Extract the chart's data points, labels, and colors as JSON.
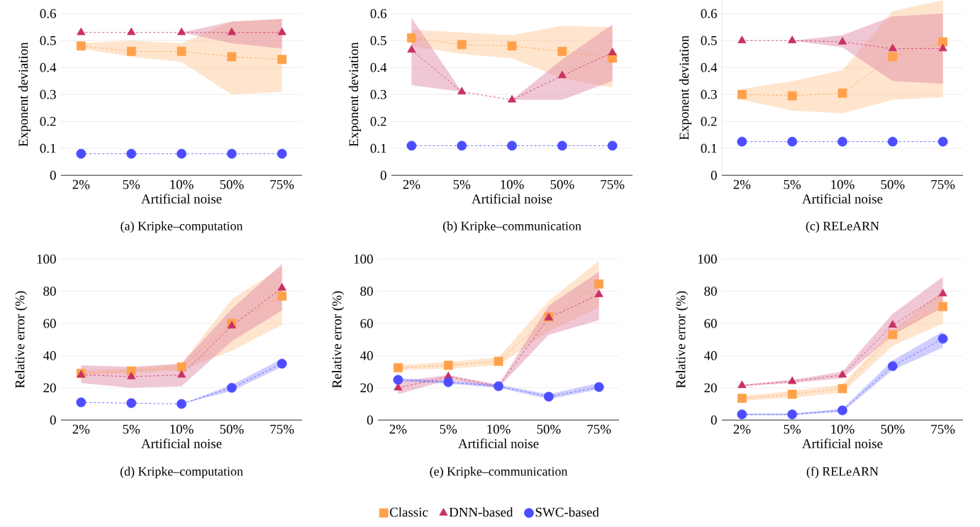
{
  "chart_data": [
    {
      "type": "line",
      "title": "(a) Kripke–computation",
      "xlabel": "Artificial noise",
      "ylabel": "Exponent deviation",
      "categories": [
        "2%",
        "5%",
        "10%",
        "50%",
        "75%"
      ],
      "ylim": [
        0,
        0.6
      ],
      "yticks": [
        0,
        0.1,
        0.2,
        0.3,
        0.4,
        0.5,
        0.6
      ],
      "grid": "y",
      "line_style": "dashed",
      "series": [
        {
          "color": "#ffa14a",
          "marker": "square",
          "values": [
            0.48,
            0.46,
            0.46,
            0.44,
            0.43
          ],
          "lower": [
            0.47,
            0.44,
            0.42,
            0.3,
            0.31
          ],
          "upper": [
            0.49,
            0.5,
            0.49,
            0.57,
            0.58
          ]
        },
        {
          "color": "#c93163",
          "marker": "triangle",
          "values": [
            0.53,
            0.53,
            0.53,
            0.53,
            0.53
          ],
          "lower": [
            0.53,
            0.53,
            0.53,
            0.49,
            0.47
          ],
          "upper": [
            0.53,
            0.53,
            0.53,
            0.57,
            0.58
          ]
        },
        {
          "color": "#4d4dff",
          "marker": "circle",
          "values": [
            0.08,
            0.08,
            0.08,
            0.08,
            0.08
          ]
        }
      ]
    },
    {
      "type": "line",
      "title": "(b) Kripke–communication",
      "xlabel": "Artificial noise",
      "ylabel": "Exponent deviation",
      "categories": [
        "2%",
        "5%",
        "10%",
        "50%",
        "75%"
      ],
      "ylim": [
        0,
        0.6
      ],
      "yticks": [
        0,
        0.1,
        0.2,
        0.3,
        0.4,
        0.5,
        0.6
      ],
      "grid": "y",
      "line_style": "dashed",
      "series": [
        {
          "color": "#ffa14a",
          "marker": "square",
          "values": [
            0.51,
            0.485,
            0.48,
            0.46,
            0.435
          ],
          "lower": [
            0.48,
            0.45,
            0.435,
            0.36,
            0.325
          ],
          "upper": [
            0.54,
            0.53,
            0.52,
            0.555,
            0.55
          ]
        },
        {
          "color": "#c93163",
          "marker": "triangle",
          "values": [
            0.465,
            0.31,
            0.28,
            0.37,
            0.455
          ],
          "lower": [
            0.335,
            0.31,
            0.28,
            0.28,
            0.35
          ],
          "upper": [
            0.585,
            0.31,
            0.28,
            0.43,
            0.56
          ]
        },
        {
          "color": "#4d4dff",
          "marker": "circle",
          "values": [
            0.11,
            0.11,
            0.11,
            0.11,
            0.11
          ]
        }
      ]
    },
    {
      "type": "line",
      "title": "(c) RELeARN",
      "xlabel": "Artificial noise",
      "ylabel": "Exponent deviation",
      "categories": [
        "2%",
        "5%",
        "10%",
        "50%",
        "75%"
      ],
      "ylim": [
        0,
        0.65
      ],
      "yticks": [
        0,
        0.1,
        0.2,
        0.3,
        0.4,
        0.5,
        0.6
      ],
      "grid": "y",
      "line_style": "dashed",
      "series": [
        {
          "color": "#ffa14a",
          "marker": "square",
          "values": [
            0.3,
            0.295,
            0.305,
            0.44,
            0.495
          ],
          "lower": [
            0.28,
            0.24,
            0.23,
            0.28,
            0.29
          ],
          "upper": [
            0.32,
            0.35,
            0.39,
            0.61,
            0.65
          ]
        },
        {
          "color": "#c93163",
          "marker": "triangle",
          "values": [
            0.5,
            0.5,
            0.495,
            0.47,
            0.47
          ],
          "lower": [
            0.5,
            0.5,
            0.475,
            0.35,
            0.34
          ],
          "upper": [
            0.5,
            0.5,
            0.52,
            0.59,
            0.6
          ]
        },
        {
          "color": "#4d4dff",
          "marker": "circle",
          "values": [
            0.125,
            0.125,
            0.125,
            0.125,
            0.125
          ]
        }
      ]
    },
    {
      "type": "line",
      "title": "(d) Kripke–computation",
      "xlabel": "Artificial noise",
      "ylabel": "Relative error (%)",
      "categories": [
        "2%",
        "5%",
        "10%",
        "50%",
        "75%"
      ],
      "ylim": [
        0,
        100
      ],
      "yticks": [
        0,
        20,
        40,
        60,
        80,
        100
      ],
      "grid": "y",
      "line_style": "dashed",
      "series": [
        {
          "color": "#ffa14a",
          "marker": "square",
          "values": [
            29,
            30.5,
            33,
            60,
            77
          ],
          "lower": [
            28,
            29,
            31,
            43,
            59
          ],
          "upper": [
            31,
            32,
            35,
            75,
            95
          ]
        },
        {
          "color": "#c93163",
          "marker": "triangle",
          "values": [
            28,
            27,
            28,
            58.5,
            82
          ],
          "lower": [
            23,
            20,
            21,
            49,
            68
          ],
          "upper": [
            34,
            33,
            35,
            69,
            97
          ]
        },
        {
          "color": "#4d4dff",
          "marker": "circle",
          "values": [
            11,
            10.5,
            10,
            20,
            35
          ],
          "lower": [
            11,
            10.5,
            10,
            18,
            33
          ],
          "upper": [
            11,
            10.5,
            10,
            22,
            38
          ]
        }
      ]
    },
    {
      "type": "line",
      "title": "(e) Kripke–communication",
      "xlabel": "Artificial noise",
      "ylabel": "Relative error (%)",
      "categories": [
        "2%",
        "5%",
        "10%",
        "50%",
        "75%"
      ],
      "ylim": [
        0,
        100
      ],
      "yticks": [
        0,
        20,
        40,
        60,
        80,
        100
      ],
      "grid": "y",
      "line_style": "dashed",
      "legend": "bottom",
      "series": [
        {
          "name": "Classic",
          "color": "#ffa14a",
          "marker": "square",
          "values": [
            32.5,
            34,
            36.5,
            64,
            84.5
          ],
          "lower": [
            31,
            32,
            34,
            55,
            70
          ],
          "upper": [
            34,
            36,
            39,
            74,
            99
          ]
        },
        {
          "name": "DNN-based",
          "color": "#c93163",
          "marker": "triangle",
          "values": [
            20,
            27,
            21,
            63.5,
            78
          ],
          "lower": [
            16,
            25,
            20,
            53,
            62
          ],
          "upper": [
            24,
            28,
            22,
            71,
            92
          ]
        },
        {
          "name": "SWC-based",
          "color": "#4d4dff",
          "marker": "circle",
          "values": [
            25,
            23.5,
            21,
            14.5,
            20.5
          ],
          "lower": [
            24,
            22.5,
            20,
            13,
            19
          ],
          "upper": [
            26,
            24.5,
            22,
            16,
            23
          ]
        }
      ]
    },
    {
      "type": "line",
      "title": "(f) RELeARN",
      "xlabel": "Artificial noise",
      "ylabel": "Relative error (%)",
      "categories": [
        "2%",
        "5%",
        "10%",
        "50%",
        "75%"
      ],
      "ylim": [
        0,
        100
      ],
      "yticks": [
        0,
        20,
        40,
        60,
        80,
        100
      ],
      "grid": "y",
      "line_style": "dashed",
      "series": [
        {
          "color": "#ffa14a",
          "marker": "square",
          "values": [
            13.5,
            16,
            19.5,
            53,
            70.5
          ],
          "lower": [
            12,
            14,
            17,
            46,
            60
          ],
          "upper": [
            15,
            18,
            22,
            56,
            80
          ]
        },
        {
          "color": "#c93163",
          "marker": "triangle",
          "values": [
            21.5,
            24,
            28,
            59,
            78.5
          ],
          "lower": [
            21,
            23,
            26,
            53,
            70
          ],
          "upper": [
            22,
            25,
            30,
            66,
            89
          ]
        },
        {
          "color": "#4d4dff",
          "marker": "circle",
          "values": [
            3.5,
            3.5,
            6,
            33.5,
            50.5
          ],
          "lower": [
            3,
            3,
            5,
            31,
            45
          ],
          "upper": [
            4,
            4,
            7,
            37,
            55
          ]
        }
      ]
    }
  ]
}
